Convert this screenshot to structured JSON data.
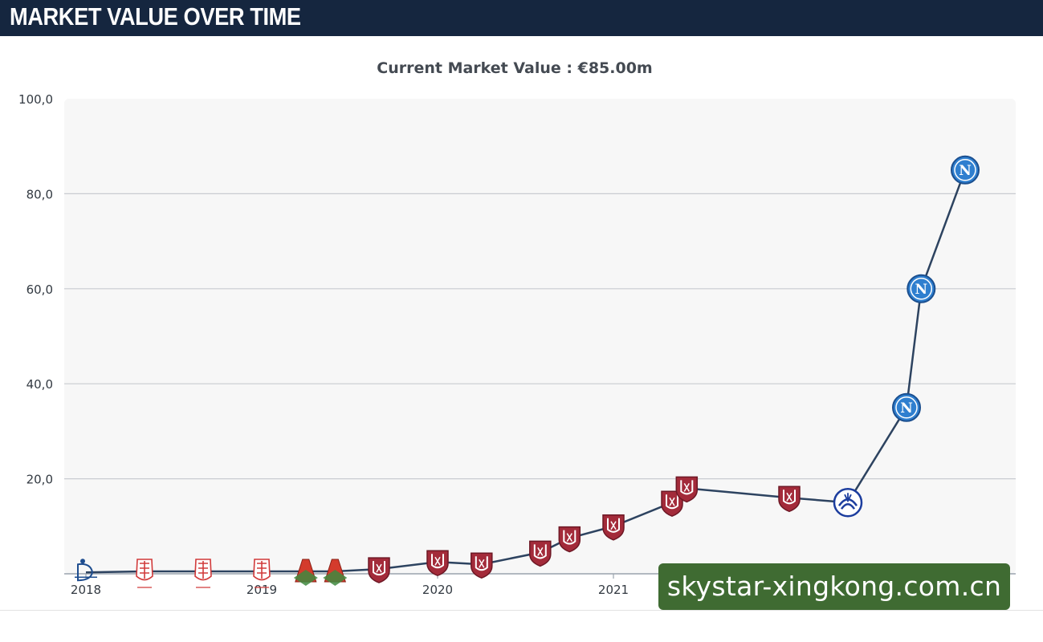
{
  "header": {
    "title": "MARKET VALUE OVER TIME"
  },
  "chart_title": "Current Market Value : €85.00m",
  "watermark": "skystar-xingkong.com.cn",
  "colors": {
    "header_bg": "#15263f",
    "line": "#2d4360",
    "grid": "#c9ccd1",
    "plot_bg": "#f7f7f7",
    "club_a": "#1e4d8f",
    "club_b": "#d13a3a",
    "club_c": "#3f8a3f",
    "club_d": "#a32b3a",
    "club_e": "#1c3d9e",
    "club_f": "#3d8fd6",
    "watermark_bg": "#3f6b32"
  },
  "chart_data": {
    "type": "line",
    "title": "Current Market Value : €85.00m",
    "xlabel": "",
    "ylabel": "",
    "ylim": [
      0,
      100
    ],
    "y_ticks": [
      "20,0",
      "40,0",
      "60,0",
      "80,0",
      "100,0"
    ],
    "x_ticks": [
      "2018",
      "2019",
      "2020",
      "2021"
    ],
    "grid": true,
    "series": [
      {
        "values": [
          {
            "x": "2018-01",
            "y": 0.3,
            "icon": "club-a-crest-icon"
          },
          {
            "x": "2018-05",
            "y": 0.5,
            "icon": "club-b-crest-icon"
          },
          {
            "x": "2018-09",
            "y": 0.5,
            "icon": "club-b-crest-icon"
          },
          {
            "x": "2019-01",
            "y": 0.5,
            "icon": "club-b-crest-icon"
          },
          {
            "x": "2019-04",
            "y": 0.5,
            "icon": "club-c-crest-icon"
          },
          {
            "x": "2019-06",
            "y": 0.5,
            "icon": "club-c-crest-icon"
          },
          {
            "x": "2019-09",
            "y": 1.0,
            "icon": "club-d-shield-icon"
          },
          {
            "x": "2020-01",
            "y": 2.5,
            "icon": "club-d-shield-icon"
          },
          {
            "x": "2020-04",
            "y": 2.0,
            "icon": "club-d-shield-icon"
          },
          {
            "x": "2020-08",
            "y": 4.5,
            "icon": "club-d-shield-icon"
          },
          {
            "x": "2020-10",
            "y": 7.5,
            "icon": "club-d-shield-icon"
          },
          {
            "x": "2021-01",
            "y": 10.0,
            "icon": "club-d-shield-icon"
          },
          {
            "x": "2021-05",
            "y": 15.0,
            "icon": "club-d-shield-icon"
          },
          {
            "x": "2021-06",
            "y": 18.0,
            "icon": "club-d-shield-icon"
          },
          {
            "x": "2022-01",
            "y": 16.0,
            "icon": "club-d-shield-icon"
          },
          {
            "x": "2022-05",
            "y": 15.0,
            "icon": "club-e-crest-icon"
          },
          {
            "x": "2022-09",
            "y": 35.0,
            "icon": "club-f-crest-icon"
          },
          {
            "x": "2022-10",
            "y": 60.0,
            "icon": "club-f-crest-icon"
          },
          {
            "x": "2023-01",
            "y": 85.0,
            "icon": "club-f-crest-icon"
          }
        ]
      }
    ]
  }
}
